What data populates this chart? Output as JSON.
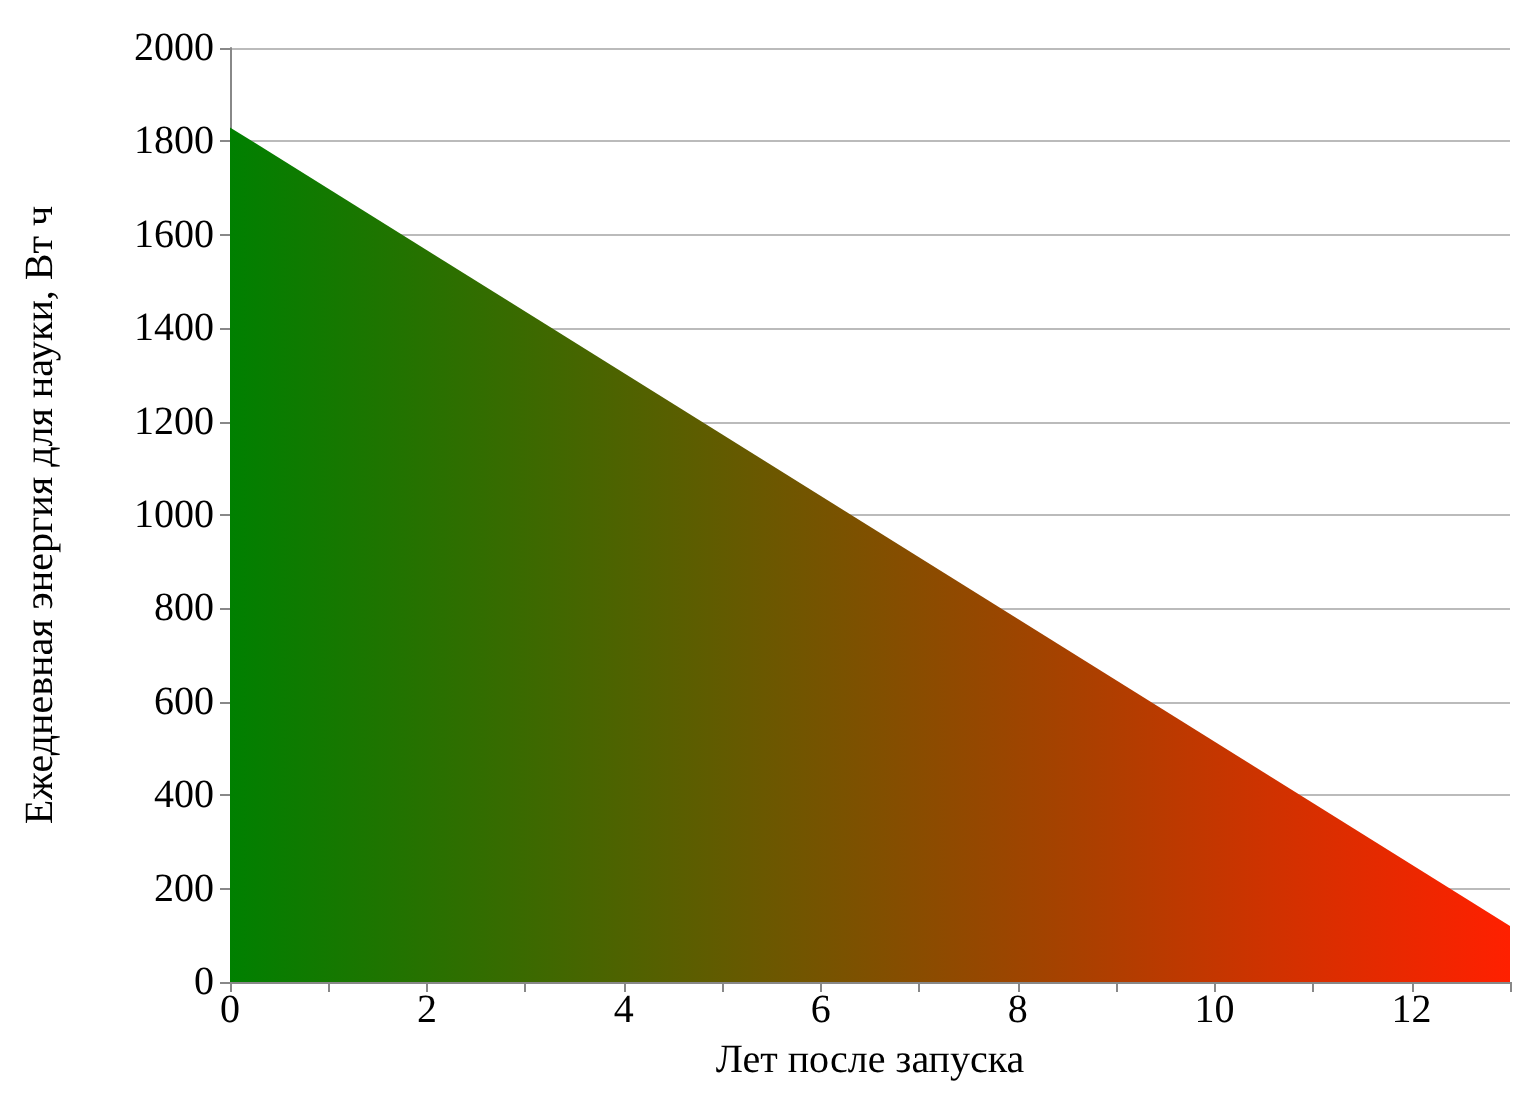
{
  "chart_data": {
    "type": "area",
    "xlabel": "Лет после запуска",
    "ylabel": "Ежедневная энергия для науки, Вт ч",
    "x": [
      0,
      13
    ],
    "series": [
      {
        "values": [
          1830,
          120
        ],
        "colors": [
          "#008000",
          "#ff2000"
        ]
      }
    ],
    "xlim": [
      0,
      13
    ],
    "xticks": [
      0,
      {
        "value": 1,
        "label": null
      },
      2,
      {
        "value": 3,
        "label": null
      },
      4,
      {
        "value": 5,
        "label": null
      },
      6,
      {
        "value": 7,
        "label": null
      },
      8,
      {
        "value": 9,
        "label": null
      },
      10,
      {
        "value": 11,
        "label": null
      },
      12,
      {
        "value": 13,
        "label": null
      }
    ],
    "ylim": [
      0,
      2000
    ],
    "yticks": [
      0,
      200,
      400,
      600,
      800,
      1000,
      1200,
      1400,
      1600,
      1800,
      2000
    ],
    "grid": "y",
    "marker": "none"
  }
}
